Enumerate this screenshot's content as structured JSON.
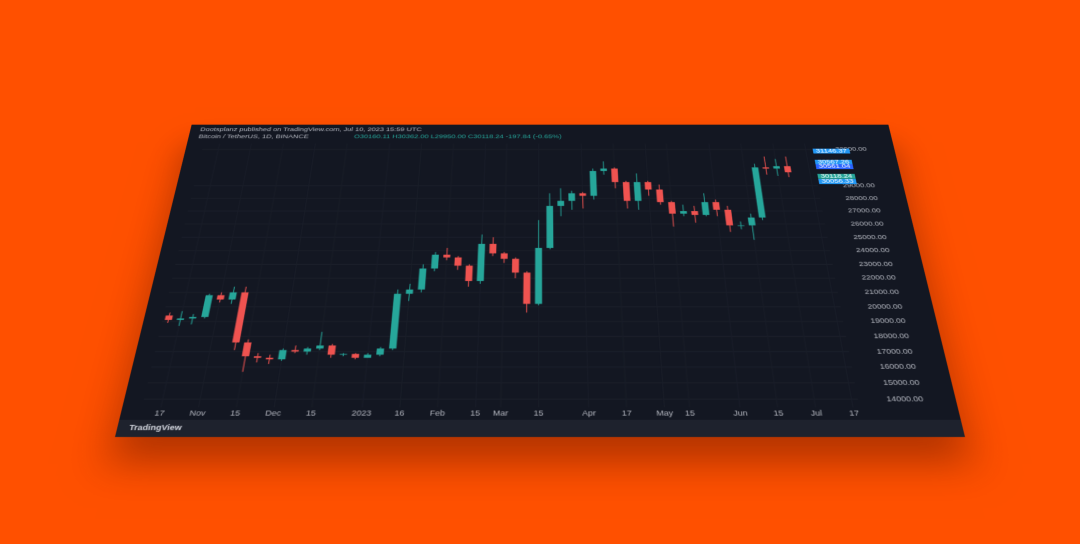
{
  "header": {
    "author_line": "Dootsplanz published on TradingView.com, Jul 10, 2023 15:59 UTC",
    "symbol": "Bitcoin / TetherUS, 1D, BINANCE",
    "ohlc": "O30160.11 H30362.00 L29950.00 C30118.24 -197.84 (-0.65%)"
  },
  "footer": {
    "brand": "TradingView"
  },
  "chart_data": {
    "type": "candlestick",
    "up_color": "#26a69a",
    "down_color": "#ef5350",
    "grid": true,
    "categories": [
      null,
      "17",
      null,
      null,
      "Nov",
      null,
      null,
      "15",
      null,
      null,
      "Dec",
      null,
      null,
      "15",
      null,
      null,
      null,
      "2023",
      null,
      null,
      "16",
      null,
      null,
      "Feb",
      null,
      null,
      "15",
      null,
      "Mar",
      null,
      null,
      "15",
      null,
      null,
      null,
      "Apr",
      null,
      null,
      "17",
      null,
      null,
      "May",
      null,
      "15",
      null,
      null,
      null,
      "Jun",
      null,
      null,
      "15",
      null,
      null,
      "Jul",
      null,
      null,
      "17"
    ],
    "open": [
      19400,
      19100,
      19200,
      19300,
      20800,
      20500,
      21000,
      17600,
      16700,
      16600,
      16500,
      17100,
      17000,
      17200,
      17400,
      16800,
      16850,
      16600,
      16800,
      17200,
      20900,
      21200,
      22700,
      23700,
      23500,
      22900,
      21800,
      24500,
      23800,
      23400,
      22400,
      20200,
      24200,
      27400,
      27800,
      28400,
      28200,
      30200,
      30400,
      29300,
      27800,
      29300,
      28700,
      27700,
      26800,
      27000,
      26700,
      27700,
      27100,
      25900,
      25900,
      26500,
      30500,
      30400,
      30600,
      null,
      null
    ],
    "high": [
      19600,
      19700,
      19500,
      20900,
      21000,
      21400,
      21400,
      17800,
      16900,
      16800,
      17200,
      17400,
      17300,
      18300,
      17500,
      16900,
      16900,
      16900,
      17300,
      21200,
      21600,
      23000,
      23900,
      24200,
      23600,
      23000,
      25200,
      25000,
      23900,
      23500,
      22500,
      26300,
      28400,
      28800,
      28600,
      28500,
      30400,
      31000,
      30500,
      29400,
      30000,
      29400,
      29100,
      27800,
      27500,
      27400,
      28400,
      27900,
      27400,
      26200,
      26800,
      30800,
      31400,
      31200,
      31400,
      null,
      null
    ],
    "low": [
      18900,
      18700,
      18800,
      19200,
      20300,
      20200,
      17100,
      15700,
      16300,
      16200,
      16400,
      16900,
      16800,
      17100,
      16600,
      16700,
      16500,
      16600,
      16700,
      17100,
      20400,
      21000,
      22500,
      23300,
      22600,
      21400,
      21600,
      23600,
      23100,
      22000,
      19600,
      20100,
      24100,
      26600,
      27100,
      27200,
      27900,
      29900,
      28800,
      27200,
      27100,
      28200,
      27500,
      25800,
      26600,
      26100,
      26600,
      26600,
      25400,
      25600,
      24800,
      26300,
      29900,
      29800,
      29700,
      null,
      null
    ],
    "close": [
      19100,
      19200,
      19300,
      20800,
      20500,
      21000,
      17600,
      16700,
      16600,
      16500,
      17100,
      17000,
      17200,
      17400,
      16800,
      16850,
      16600,
      16800,
      17200,
      20900,
      21200,
      22700,
      23700,
      23500,
      22900,
      21800,
      24500,
      23800,
      23400,
      22400,
      20200,
      24200,
      27400,
      27800,
      28400,
      28200,
      30200,
      30400,
      29300,
      27800,
      29300,
      28700,
      27700,
      26800,
      27000,
      26700,
      27700,
      27100,
      25900,
      25900,
      26500,
      30500,
      30400,
      30600,
      30100,
      null,
      null
    ],
    "ylim": [
      13500,
      32500
    ],
    "yticks": [
      {
        "value": 14000,
        "label": "14000.00"
      },
      {
        "value": 15000,
        "label": "15000.00"
      },
      {
        "value": 16000,
        "label": "16000.00"
      },
      {
        "value": 17000,
        "label": "17000.00"
      },
      {
        "value": 18000,
        "label": "18000.00"
      },
      {
        "value": 19000,
        "label": "19000.00"
      },
      {
        "value": 20000,
        "label": "20000.00"
      },
      {
        "value": 21000,
        "label": "21000.00"
      },
      {
        "value": 22000,
        "label": "22000.00"
      },
      {
        "value": 23000,
        "label": "23000.00"
      },
      {
        "value": 24000,
        "label": "24000.00"
      },
      {
        "value": 25000,
        "label": "25000.00"
      },
      {
        "value": 26000,
        "label": "26000.00"
      },
      {
        "value": 27000,
        "label": "27000.00"
      },
      {
        "value": 28000,
        "label": "28000.00"
      },
      {
        "value": 29000,
        "label": "29000.00"
      },
      {
        "value": 32000,
        "label": "32000.00"
      }
    ],
    "price_labels": [
      {
        "value": 31146.37,
        "color": "#2196f3"
      },
      {
        "value": 30567.26,
        "color": "#2196f3"
      },
      {
        "value": 30561.04,
        "color": "#2962ff"
      },
      {
        "value": 30118.24,
        "color": "#26a69a"
      },
      {
        "value": 30056.33,
        "color": "#2196f3"
      }
    ]
  }
}
